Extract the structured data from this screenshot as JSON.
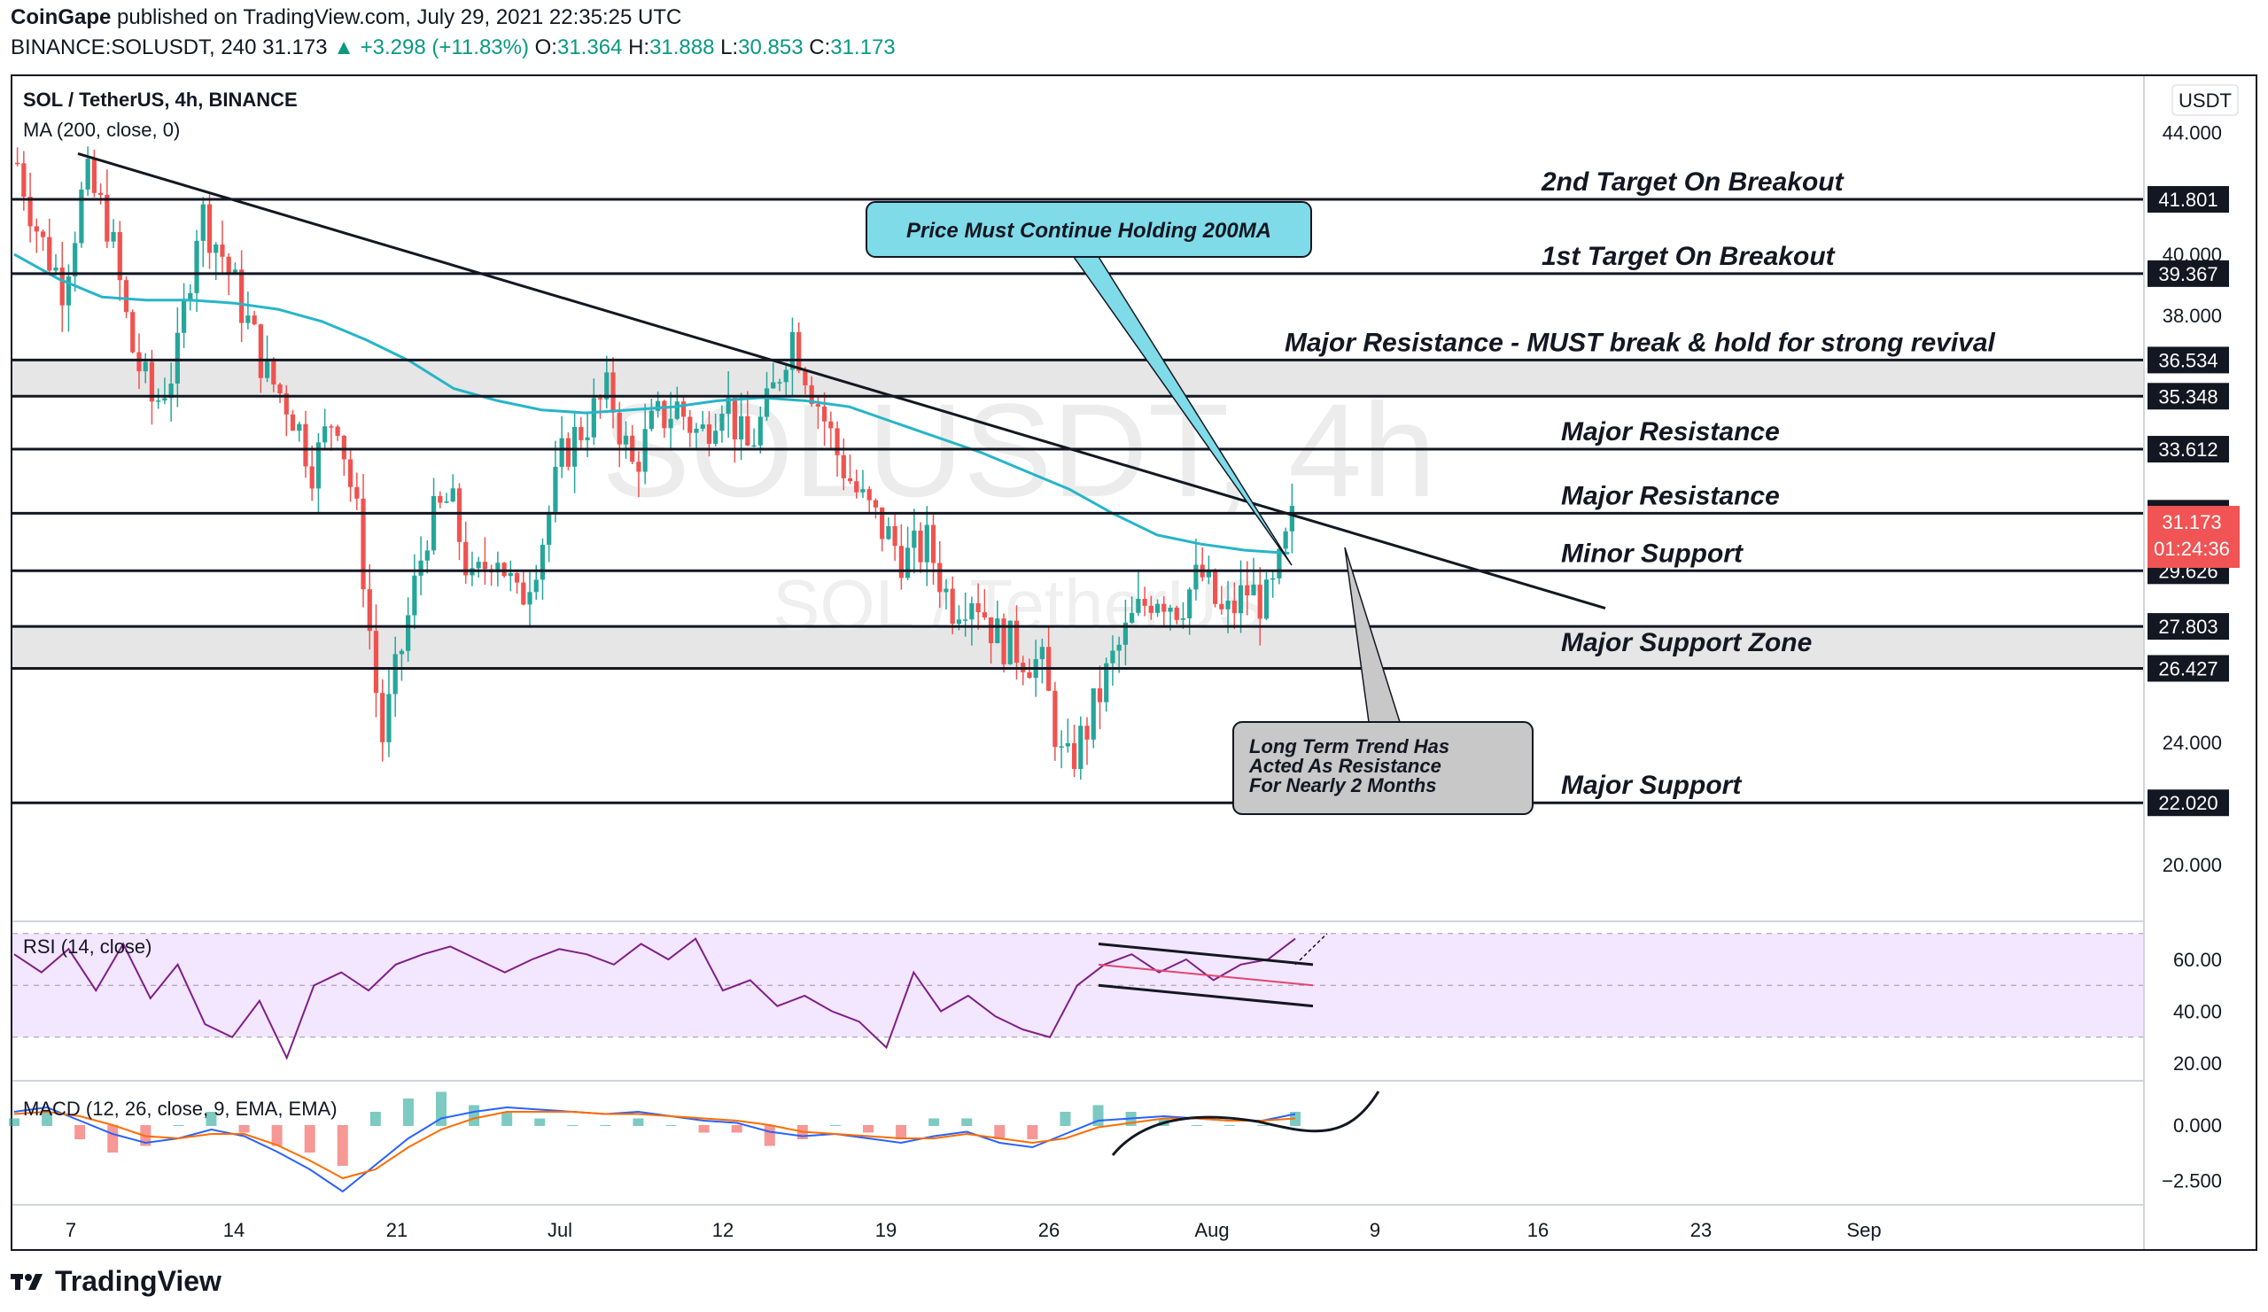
{
  "header": {
    "publisher": "CoinGape",
    "published_text": "published on TradingView.com, July 29, 2021 22:35:25 UTC",
    "symbol": "BINANCE:SOLUSDT, 240",
    "last": "31.173",
    "change": "▲ +3.298 (+11.83%)",
    "o_label": "O:",
    "o": "31.364",
    "h_label": "H:",
    "h": "31.888",
    "l_label": "L:",
    "l": "30.853",
    "c_label": "C:",
    "c": "31.173"
  },
  "legend": {
    "title": "SOL / TetherUS, 4h, BINANCE",
    "ma": "MA (200, close, 0)",
    "rsi": "RSI (14, close)",
    "macd": "MACD (12, 26, close, 9, EMA, EMA)",
    "currency": "USDT",
    "watermark1": "SOLUSDT, 4h",
    "watermark2": "SOL / TetherUS"
  },
  "footer": {
    "brand": "TradingView"
  },
  "colors": {
    "ma": "#26b5c8",
    "up": "#26a69a",
    "down": "#ef5350",
    "rsi": "#7e1f86",
    "rsi_band": "#f3e6ff",
    "macd": "#2962ff",
    "signal": "#ff6d00",
    "callout_cyan": "#7fdbe8",
    "callout_gray": "#c8c8c8"
  },
  "chart_data": {
    "type": "line",
    "price_axis": {
      "ticks": [
        20,
        22,
        24,
        26,
        28,
        30,
        32,
        34,
        36,
        38,
        40,
        42,
        44
      ],
      "tick_labels": [
        "20.000",
        "",
        "24.000",
        "",
        "",
        "",
        "",
        "",
        "",
        "38.000",
        "40.000",
        "",
        "44.000"
      ],
      "ylim": [
        18.6,
        45.2
      ]
    },
    "rsi_axis": {
      "ticks": [
        20,
        40,
        60
      ],
      "tick_labels": [
        "20.00",
        "40.00",
        "60.00"
      ],
      "band": [
        30,
        70
      ]
    },
    "macd_axis": {
      "ticks": [
        -2.5,
        0
      ],
      "tick_labels": [
        "−2.500",
        "0.000"
      ]
    },
    "x_ticks": [
      "7",
      "14",
      "21",
      "Jul",
      "12",
      "19",
      "26",
      "Aug",
      "9",
      "16",
      "23",
      "Sep"
    ],
    "levels": [
      {
        "price": 41.801,
        "label": "41.801",
        "text": "2nd Target On Breakout"
      },
      {
        "price": 39.367,
        "label": "39.367",
        "text": "1st Target On Breakout"
      },
      {
        "price": 36.534,
        "label": "36.534",
        "text": "Major Resistance - MUST break & hold for strong revival"
      },
      {
        "price": 35.348,
        "label": "35.348",
        "text": ""
      },
      {
        "price": 33.612,
        "label": "33.612",
        "text": "Major Resistance"
      },
      {
        "price": 31.513,
        "label": "31.513",
        "text": "Major Resistance"
      },
      {
        "price": 29.626,
        "label": "29.626",
        "text": "Minor Support"
      },
      {
        "price": 27.803,
        "label": "27.803",
        "text": "Major Support Zone"
      },
      {
        "price": 26.427,
        "label": "26.427",
        "text": ""
      },
      {
        "price": 22.02,
        "label": "22.020",
        "text": "Major Support"
      }
    ],
    "zones": [
      [
        35.348,
        36.534
      ],
      [
        26.427,
        27.803
      ]
    ],
    "current_price": {
      "price": 31.173,
      "label": "31.173",
      "countdown": "01:24:36"
    },
    "trendline": {
      "from": [
        "Jun 7",
        43.3
      ],
      "to": [
        "Aug 12",
        28.4
      ]
    },
    "callouts": [
      {
        "text": "Price Must Continue Holding 200MA"
      },
      {
        "text_lines": [
          "Long Term Trend Has",
          "Acted As Resistance",
          "For Nearly 2 Months"
        ]
      }
    ],
    "price_series": [
      43.0,
      40.5,
      39.0,
      42.5,
      41.0,
      37.0,
      35.0,
      36.5,
      41.5,
      40.0,
      38.0,
      36.0,
      35.0,
      33.0,
      35.0,
      31.0,
      24.0,
      27.5,
      31.0,
      32.0,
      29.0,
      30.5,
      28.5,
      30.5,
      33.5,
      34.5,
      35.5,
      33.0,
      34.5,
      35.0,
      34.0,
      35.5,
      33.5,
      35.0,
      37.5,
      35.5,
      33.5,
      32.0,
      31.0,
      30.0,
      30.5,
      28.5,
      29.0,
      27.5,
      27.0,
      26.5,
      23.0,
      24.5,
      26.5,
      28.0,
      29.0,
      28.5,
      29.5,
      28.0,
      29.0,
      28.5,
      31.2
    ],
    "ma_series": [
      40.0,
      39.2,
      38.6,
      38.5,
      38.5,
      38.4,
      38.2,
      37.8,
      37.2,
      36.5,
      35.6,
      35.2,
      34.9,
      34.8,
      34.9,
      35.0,
      35.2,
      35.3,
      35.2,
      35.0,
      34.5,
      34.0,
      33.5,
      32.9,
      32.3,
      31.5,
      30.8,
      30.5,
      30.3,
      30.2
    ],
    "rsi_series": [
      62,
      55,
      64,
      48,
      66,
      45,
      58,
      35,
      30,
      44,
      22,
      50,
      55,
      48,
      58,
      62,
      65,
      60,
      55,
      60,
      64,
      62,
      58,
      66,
      60,
      68,
      48,
      52,
      42,
      46,
      40,
      36,
      26,
      55,
      40,
      46,
      38,
      33,
      30,
      50,
      58,
      62,
      55,
      60,
      52,
      58,
      60,
      68
    ],
    "macd_series": [
      0.6,
      0.8,
      0.2,
      -0.4,
      -0.8,
      -0.6,
      -0.2,
      -0.5,
      -1.2,
      -2.0,
      -3.0,
      -1.8,
      -0.6,
      0.3,
      0.6,
      0.8,
      0.7,
      0.6,
      0.5,
      0.6,
      0.4,
      0.2,
      0.1,
      -0.3,
      -0.5,
      -0.4,
      -0.6,
      -0.8,
      -0.5,
      -0.3,
      -0.8,
      -1.0,
      -0.4,
      0.2,
      0.3,
      0.4,
      0.3,
      0.2,
      0.2,
      0.5
    ],
    "signal_series": [
      0.5,
      0.6,
      0.4,
      0.0,
      -0.5,
      -0.6,
      -0.4,
      -0.4,
      -0.9,
      -1.6,
      -2.4,
      -2.0,
      -1.0,
      -0.2,
      0.3,
      0.6,
      0.6,
      0.6,
      0.5,
      0.5,
      0.4,
      0.3,
      0.2,
      0.0,
      -0.3,
      -0.4,
      -0.5,
      -0.6,
      -0.6,
      -0.4,
      -0.6,
      -0.8,
      -0.6,
      -0.1,
      0.1,
      0.3,
      0.3,
      0.2,
      0.2,
      0.3
    ]
  }
}
